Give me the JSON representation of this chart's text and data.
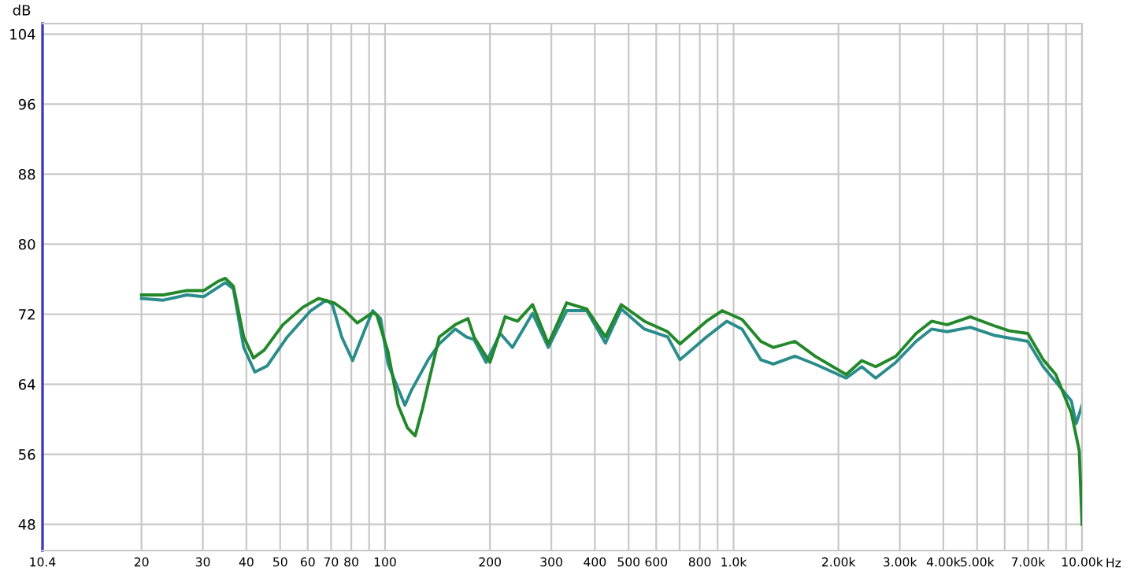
{
  "chart_data": {
    "type": "line",
    "ylabel": "dB",
    "log": "x",
    "grid": true,
    "legend": false,
    "marker": "none",
    "line_style": "solid",
    "xlim": [
      10.4,
      10000
    ],
    "ylim": [
      45,
      105.2
    ],
    "xticks": [
      {
        "value": 10.4,
        "label": "10.4"
      },
      20,
      30,
      40,
      50,
      60,
      70,
      80,
      {
        "value": 90,
        "label": null
      },
      100,
      200,
      300,
      400,
      500,
      600,
      {
        "value": 700,
        "label": null
      },
      800,
      {
        "value": 900,
        "label": null
      },
      {
        "value": 1000,
        "label": "1.0k"
      },
      {
        "value": 2000,
        "label": "2.00k"
      },
      {
        "value": 3000,
        "label": "3.00k"
      },
      {
        "value": 4000,
        "label": "4.00k"
      },
      {
        "value": 5000,
        "label": "5.00k"
      },
      {
        "value": 6000,
        "label": null
      },
      {
        "value": 7000,
        "label": "7.00k"
      },
      {
        "value": 8000,
        "label": null
      },
      {
        "value": 9000,
        "label": null
      },
      {
        "value": 10000,
        "label": "10.00k"
      }
    ],
    "xlabel": "Hz",
    "yticks": [
      48,
      56,
      64,
      72,
      80,
      88,
      96,
      104
    ],
    "series": [
      {
        "color": "#2b8c8c",
        "x": [
          20,
          23.1,
          27,
          30.2,
          34.8,
          36.7,
          39.3,
          42.3,
          45.9,
          52.4,
          61.2,
          67.8,
          70.6,
          75.1,
          80.7,
          87.6,
          92.2,
          97.1,
          102,
          114,
          119,
          133,
          143,
          159,
          171,
          180,
          195,
          214,
          232,
          265,
          294,
          332,
          379,
          429,
          476,
          555,
          647,
          702,
          836,
          957,
          1058,
          1197,
          1300,
          1500,
          1714,
          2105,
          2333,
          2558,
          2922,
          3340,
          3700,
          4100,
          4780,
          5580,
          6990,
          7740,
          9320,
          9620,
          10000
        ],
        "values": [
          73.8,
          73.6,
          74.2,
          74.0,
          75.6,
          74.9,
          68.2,
          65.4,
          66.1,
          69.4,
          72.4,
          73.6,
          73.1,
          69.4,
          66.7,
          70.3,
          72.4,
          71.5,
          66.3,
          61.6,
          63.3,
          66.8,
          68.6,
          70.3,
          69.4,
          69.1,
          66.5,
          69.8,
          68.2,
          72.1,
          68.2,
          72.4,
          72.4,
          68.7,
          72.6,
          70.3,
          69.4,
          66.8,
          69.4,
          71.2,
          70.3,
          66.8,
          66.3,
          67.2,
          66.3,
          64.7,
          66.0,
          64.7,
          66.5,
          68.9,
          70.3,
          70.0,
          70.5,
          69.6,
          68.9,
          66.0,
          62.1,
          59.5,
          61.6
        ]
      },
      {
        "color": "#23882a",
        "x": [
          20,
          23.1,
          27,
          30.2,
          33,
          34.8,
          36.7,
          39.3,
          41.9,
          45,
          50.9,
          58.1,
          64.4,
          71.4,
          76.7,
          83.2,
          92.2,
          94.7,
          102,
          109,
          116,
          122,
          128,
          143,
          159,
          173,
          180,
          200,
          221,
          240,
          265,
          294,
          332,
          379,
          429,
          476,
          555,
          647,
          702,
          836,
          927,
          1058,
          1197,
          1300,
          1500,
          1714,
          2105,
          2333,
          2558,
          2922,
          3340,
          3700,
          4100,
          4780,
          5580,
          6180,
          6990,
          7740,
          8410,
          9320,
          9820,
          10000
        ],
        "values": [
          74.2,
          74.2,
          74.7,
          74.7,
          75.7,
          76.1,
          75.2,
          69.4,
          67.0,
          67.9,
          70.8,
          72.8,
          73.8,
          73.3,
          72.4,
          71.0,
          72.2,
          71.9,
          67.7,
          61.6,
          59.0,
          58.1,
          61.2,
          69.4,
          70.8,
          71.5,
          69.4,
          66.5,
          71.7,
          71.2,
          73.1,
          68.6,
          73.3,
          72.6,
          69.4,
          73.1,
          71.2,
          70.0,
          68.6,
          71.2,
          72.4,
          71.4,
          68.9,
          68.2,
          68.9,
          67.2,
          65.1,
          66.7,
          66.0,
          67.2,
          69.8,
          71.2,
          70.8,
          71.7,
          70.7,
          70.1,
          69.8,
          66.8,
          65.1,
          60.7,
          56.4,
          48.0
        ]
      }
    ]
  }
}
